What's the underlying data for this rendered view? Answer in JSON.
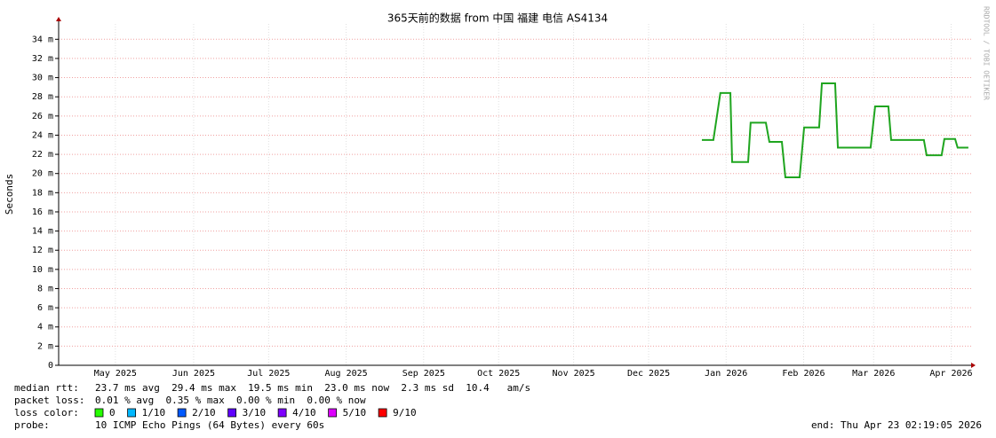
{
  "chart_data": {
    "type": "line",
    "title": "365天前的数据 from 中国 福建 电信 AS4134",
    "y_label": "Seconds",
    "credit": "RRDTOOL / TOBI OETIKER",
    "xlim": [
      0,
      365
    ],
    "xticks": [
      {
        "value": 22.7,
        "label": "May 2025"
      },
      {
        "value": 54,
        "label": "Jun 2025"
      },
      {
        "value": 84,
        "label": "Jul 2025"
      },
      {
        "value": 115,
        "label": "Aug 2025"
      },
      {
        "value": 146,
        "label": "Sep 2025"
      },
      {
        "value": 176,
        "label": "Oct 2025"
      },
      {
        "value": 206,
        "label": "Nov 2025"
      },
      {
        "value": 236,
        "label": "Dec 2025"
      },
      {
        "value": 267,
        "label": "Jan 2026"
      },
      {
        "value": 298,
        "label": "Feb 2026"
      },
      {
        "value": 326,
        "label": "Mar 2026"
      },
      {
        "value": 357,
        "label": "Apr 2026"
      }
    ],
    "ylim": [
      0,
      0.0356
    ],
    "yticks": [
      {
        "value": 0,
        "label": "0"
      },
      {
        "value": 0.002,
        "label": "2 m"
      },
      {
        "value": 0.004,
        "label": "4 m"
      },
      {
        "value": 0.006,
        "label": "6 m"
      },
      {
        "value": 0.008,
        "label": "8 m"
      },
      {
        "value": 0.01,
        "label": "10 m"
      },
      {
        "value": 0.012,
        "label": "12 m"
      },
      {
        "value": 0.014,
        "label": "14 m"
      },
      {
        "value": 0.016,
        "label": "16 m"
      },
      {
        "value": 0.018,
        "label": "18 m"
      },
      {
        "value": 0.02,
        "label": "20 m"
      },
      {
        "value": 0.022,
        "label": "22 m"
      },
      {
        "value": 0.024,
        "label": "24 m"
      },
      {
        "value": 0.026,
        "label": "26 m"
      },
      {
        "value": 0.028,
        "label": "28 m"
      },
      {
        "value": 0.03,
        "label": "30 m"
      },
      {
        "value": 0.032,
        "label": "32 m"
      },
      {
        "value": 0.034,
        "label": "34 m"
      }
    ],
    "grid": true,
    "x": [
      257.3,
      261.9,
      264.7,
      268.7,
      269.4,
      275.8,
      276.8,
      282.9,
      284.3,
      289.3,
      290.7,
      296.4,
      298.2,
      304.2,
      305.3,
      310.6,
      311.7,
      324.8,
      326.6,
      331.9,
      333.0,
      346.1,
      347.2,
      353.2,
      354.3,
      358.6,
      359.6,
      363.9
    ],
    "series": [
      {
        "name": "median rtt",
        "color": "#1fa51f",
        "values": [
          0.0235,
          0.0235,
          0.0284,
          0.0284,
          0.0212,
          0.0212,
          0.0253,
          0.0253,
          0.0233,
          0.0233,
          0.0196,
          0.0196,
          0.0248,
          0.0248,
          0.0294,
          0.0294,
          0.0227,
          0.0227,
          0.027,
          0.027,
          0.0235,
          0.0235,
          0.0219,
          0.0219,
          0.0236,
          0.0236,
          0.0227,
          0.0227
        ]
      }
    ],
    "legend": {
      "median_rtt": {
        "label": "median rtt:",
        "text": "23.7 ms avg  29.4 ms max  19.5 ms min  23.0 ms now  2.3 ms sd  10.4   am/s"
      },
      "packet_loss": {
        "label": "packet loss:",
        "text": "0.01 % avg  0.35 % max  0.00 % min  0.00 % now"
      },
      "loss_color": {
        "label": "loss color:",
        "items": [
          {
            "label": "0",
            "color": "#26ff00"
          },
          {
            "label": "1/10",
            "color": "#00b8ff"
          },
          {
            "label": "2/10",
            "color": "#0059ff"
          },
          {
            "label": "3/10",
            "color": "#5e00ff"
          },
          {
            "label": "4/10",
            "color": "#7e00ff"
          },
          {
            "label": "5/10",
            "color": "#dd00ff"
          },
          {
            "label": "9/10",
            "color": "#ff0000"
          }
        ]
      },
      "probe": {
        "label": "probe:",
        "text": "10 ICMP Echo Pings (64 Bytes) every 60s"
      },
      "end": "end: Thu Apr 23 02:19:05 2026"
    }
  }
}
